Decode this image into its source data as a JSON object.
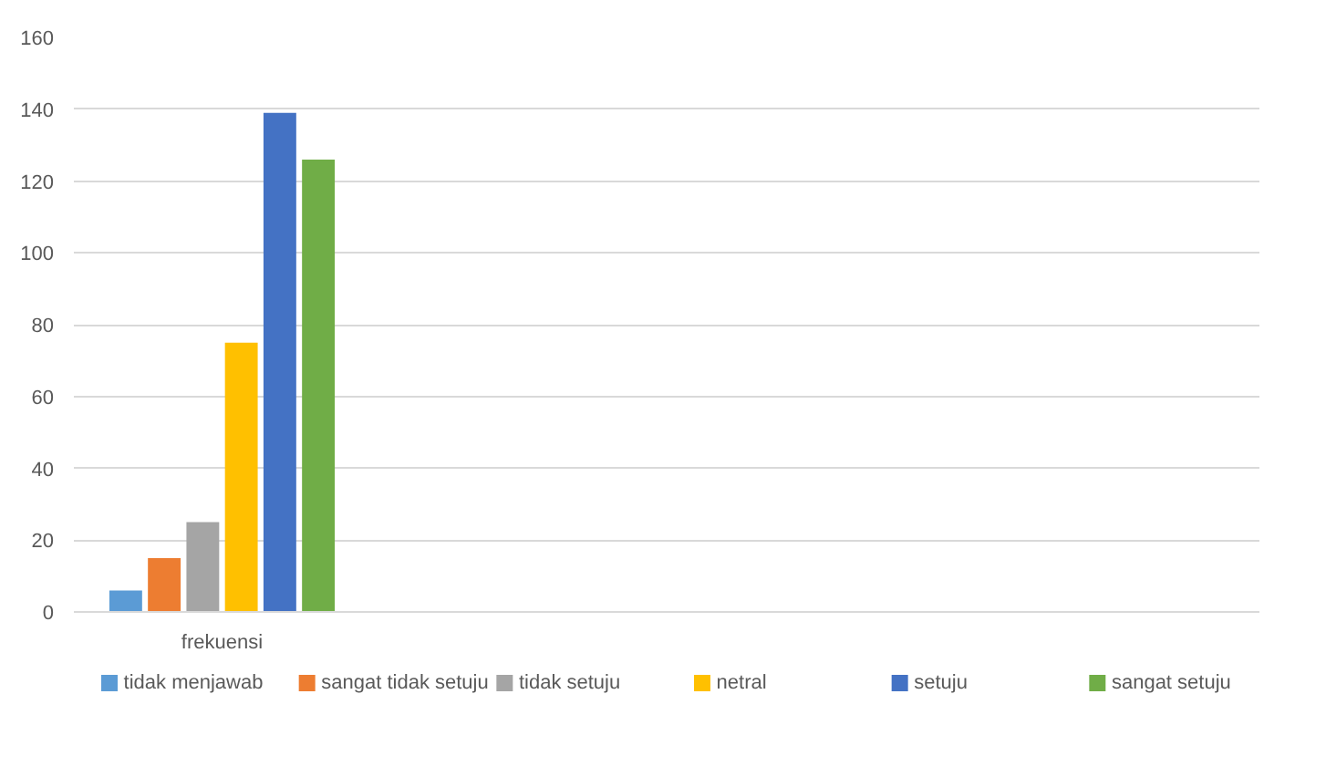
{
  "chart_data": {
    "type": "bar",
    "categories": [
      "frekuensi",
      null,
      null,
      null
    ],
    "series": [
      {
        "name": "tidak menjawab",
        "color": "#5b9bd5",
        "values": [
          6,
          null,
          null,
          null
        ]
      },
      {
        "name": "sangat tidak setuju",
        "color": "#ed7d31",
        "values": [
          15,
          null,
          null,
          null
        ]
      },
      {
        "name": "tidak setuju",
        "color": "#a5a5a5",
        "values": [
          25,
          null,
          null,
          null
        ]
      },
      {
        "name": "netral",
        "color": "#ffc000",
        "values": [
          75,
          null,
          null,
          null
        ]
      },
      {
        "name": "setuju",
        "color": "#4472c4",
        "values": [
          139,
          null,
          null,
          null
        ]
      },
      {
        "name": "sangat setuju",
        "color": "#70ad47",
        "values": [
          126,
          null,
          null,
          null
        ]
      }
    ],
    "ylim": [
      0,
      160
    ],
    "yticks": [
      0,
      20,
      40,
      60,
      80,
      100,
      120,
      140,
      160
    ],
    "grid": "y",
    "legend": "bottom"
  }
}
